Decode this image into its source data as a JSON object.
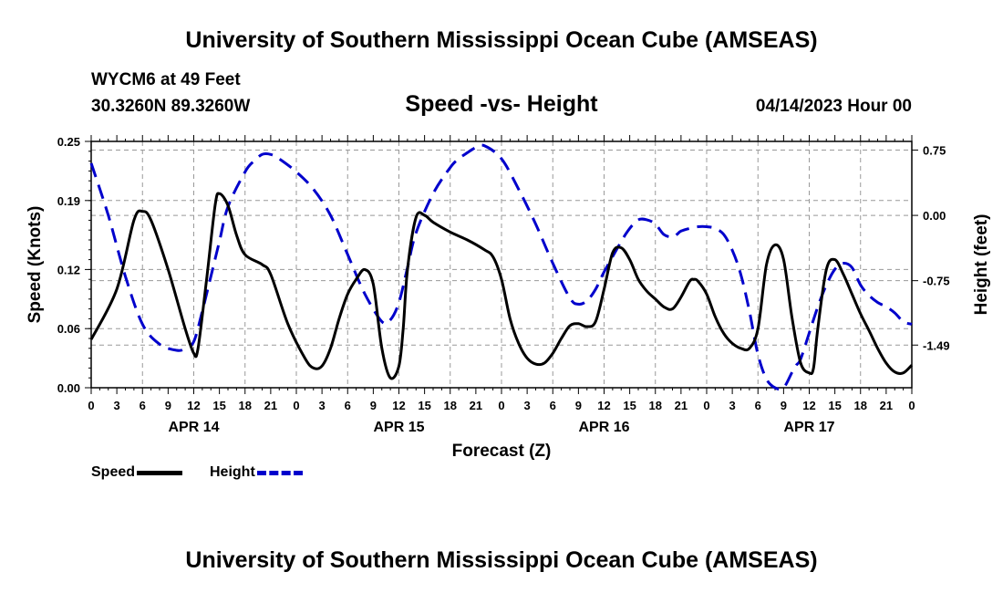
{
  "header": {
    "title": "University of Southern Mississippi Ocean Cube (AMSEAS)",
    "station": "WYCM6 at 49 Feet",
    "coords": "30.3260N  89.3260W",
    "subtitle": "Speed -vs- Height",
    "date": "04/14/2023 Hour 00",
    "footer_title": "University of Southern Mississippi Ocean Cube (AMSEAS)"
  },
  "legend": {
    "speed": "Speed",
    "height": "Height"
  },
  "colors": {
    "speed": "#000000",
    "height": "#0000cc",
    "grid": "#999999"
  },
  "chart_data": {
    "type": "line",
    "xlabel": "Forecast (Z)",
    "ylabel": "Speed (Knots)",
    "y2label": "Height (feet)",
    "xlim": [
      0,
      96
    ],
    "ylim": [
      0,
      0.25
    ],
    "y2lim": [
      -1.98,
      0.85
    ],
    "yticks": [
      "0.00",
      "0.06",
      "0.12",
      "0.19",
      "0.25"
    ],
    "ytick_values": [
      0,
      0.06,
      0.12,
      0.19,
      0.25
    ],
    "y2ticks": [
      "0.75",
      "0.00",
      "-0.75",
      "-1.49"
    ],
    "y2tick_values": [
      0.75,
      0.0,
      -0.75,
      -1.49
    ],
    "xticks": [
      "0",
      "3",
      "6",
      "9",
      "12",
      "15",
      "18",
      "21",
      "0",
      "3",
      "6",
      "9",
      "12",
      "15",
      "18",
      "21",
      "0",
      "3",
      "6",
      "9",
      "12",
      "15",
      "18",
      "21",
      "0",
      "3",
      "6",
      "9",
      "12",
      "15",
      "18",
      "21",
      "0"
    ],
    "day_labels": [
      {
        "label": "APR 14",
        "hour": 12
      },
      {
        "label": "APR 15",
        "hour": 36
      },
      {
        "label": "APR 16",
        "hour": 60
      },
      {
        "label": "APR 17",
        "hour": 84
      }
    ],
    "series": [
      {
        "name": "Speed",
        "x": [
          0,
          3,
          5,
          6,
          7,
          9,
          11,
          12,
          12.5,
          13.5,
          14.5,
          15,
          16,
          17,
          18,
          20,
          21,
          23,
          25,
          26,
          27,
          28,
          29,
          30,
          31,
          32,
          33,
          34,
          35,
          36,
          36.5,
          37,
          38,
          39,
          40,
          42,
          44,
          46,
          47,
          48,
          49,
          50,
          51,
          52,
          53,
          54,
          55,
          56,
          57,
          58,
          59,
          60,
          61,
          62,
          63,
          64,
          65,
          66,
          67,
          68,
          69,
          70,
          70.5,
          71,
          72,
          73,
          74,
          75,
          76,
          77,
          78,
          79,
          80,
          81,
          82,
          83,
          84,
          84.5,
          85,
          86,
          87,
          88,
          89,
          90,
          91,
          92,
          93,
          94,
          95,
          96
        ],
        "values": [
          0.049,
          0.1,
          0.17,
          0.179,
          0.17,
          0.12,
          0.06,
          0.035,
          0.04,
          0.11,
          0.185,
          0.197,
          0.185,
          0.155,
          0.135,
          0.125,
          0.115,
          0.065,
          0.03,
          0.02,
          0.022,
          0.04,
          0.07,
          0.095,
          0.11,
          0.12,
          0.105,
          0.04,
          0.01,
          0.022,
          0.06,
          0.12,
          0.173,
          0.175,
          0.168,
          0.158,
          0.15,
          0.14,
          0.133,
          0.11,
          0.07,
          0.045,
          0.03,
          0.024,
          0.025,
          0.035,
          0.05,
          0.063,
          0.065,
          0.062,
          0.067,
          0.1,
          0.137,
          0.142,
          0.13,
          0.11,
          0.098,
          0.09,
          0.082,
          0.08,
          0.092,
          0.108,
          0.11,
          0.108,
          0.095,
          0.072,
          0.055,
          0.045,
          0.04,
          0.04,
          0.06,
          0.125,
          0.145,
          0.13,
          0.07,
          0.025,
          0.015,
          0.02,
          0.06,
          0.12,
          0.13,
          0.115,
          0.095,
          0.075,
          0.058,
          0.04,
          0.025,
          0.016,
          0.015,
          0.023
        ]
      },
      {
        "name": "Height",
        "x": [
          0,
          2,
          4,
          6,
          8,
          10,
          11,
          12,
          13,
          14,
          15,
          16,
          18,
          19,
          20,
          21,
          22,
          24,
          26,
          28,
          30,
          32,
          34,
          35,
          36,
          37,
          38,
          40,
          42,
          43,
          44,
          45,
          46,
          48,
          50,
          52,
          54,
          56,
          57,
          58,
          59,
          60,
          62,
          63,
          64,
          65,
          66,
          67,
          68,
          68.5,
          69,
          70,
          71,
          72,
          73,
          74,
          75,
          76,
          77,
          78,
          79,
          80,
          81,
          82,
          82.5,
          83,
          84,
          85,
          86,
          87,
          88,
          89,
          90,
          91,
          92,
          93,
          94,
          95,
          96
        ],
        "values": [
          0.6,
          0.0,
          -0.7,
          -1.25,
          -1.48,
          -1.55,
          -1.53,
          -1.45,
          -1.1,
          -0.7,
          -0.3,
          0.1,
          0.5,
          0.62,
          0.7,
          0.7,
          0.65,
          0.5,
          0.3,
          0.0,
          -0.45,
          -0.9,
          -1.22,
          -1.2,
          -1.0,
          -0.6,
          -0.2,
          0.25,
          0.55,
          0.65,
          0.72,
          0.78,
          0.8,
          0.65,
          0.3,
          -0.1,
          -0.55,
          -0.95,
          -1.02,
          -0.98,
          -0.85,
          -0.65,
          -0.3,
          -0.15,
          -0.05,
          -0.05,
          -0.1,
          -0.22,
          -0.25,
          -0.22,
          -0.18,
          -0.15,
          -0.13,
          -0.13,
          -0.15,
          -0.22,
          -0.4,
          -0.68,
          -1.1,
          -1.6,
          -1.88,
          -1.98,
          -1.98,
          -1.8,
          -1.72,
          -1.65,
          -1.35,
          -1.05,
          -0.8,
          -0.62,
          -0.55,
          -0.6,
          -0.8,
          -0.92,
          -1.0,
          -1.05,
          -1.12,
          -1.22,
          -1.25
        ]
      }
    ]
  }
}
